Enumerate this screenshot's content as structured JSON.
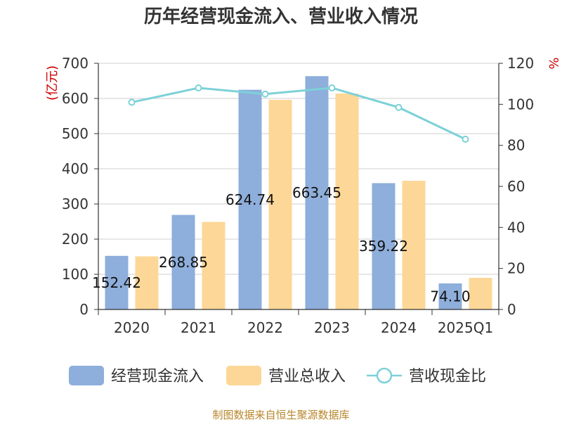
{
  "chart_data": {
    "type": "bar",
    "title": "历年经营现金流入、营业收入情况",
    "categories": [
      "2020",
      "2021",
      "2022",
      "2023",
      "2024",
      "2025Q1"
    ],
    "left_unit": "(亿元)",
    "right_unit": "%",
    "ylim": [
      0,
      700
    ],
    "y_ticks": [
      "0",
      "100",
      "200",
      "300",
      "400",
      "500",
      "600",
      "700"
    ],
    "y2lim": [
      0,
      120
    ],
    "y2_ticks": [
      "0",
      "20",
      "40",
      "60",
      "80",
      "100",
      "120"
    ],
    "grid": true,
    "legend_position": "bottom",
    "series": [
      {
        "name": "经营现金流入",
        "type": "bar",
        "axis": "left",
        "color": "#8eaedb",
        "values": [
          152.42,
          268.85,
          624.74,
          663.45,
          359.22,
          74.1
        ],
        "labels": [
          "152.42",
          "268.85",
          "624.74",
          "663.45",
          "359.22",
          "74.10"
        ]
      },
      {
        "name": "营业总收入",
        "type": "bar",
        "axis": "left",
        "color": "#fdd797",
        "values": [
          151,
          249,
          596,
          614,
          366,
          90
        ]
      },
      {
        "name": "营收现金比",
        "type": "line",
        "axis": "right",
        "color": "#7dd1d8",
        "values": [
          101,
          108,
          105,
          108,
          98.5,
          83
        ]
      }
    ],
    "source": "制图数据来自恒生聚源数据库"
  }
}
